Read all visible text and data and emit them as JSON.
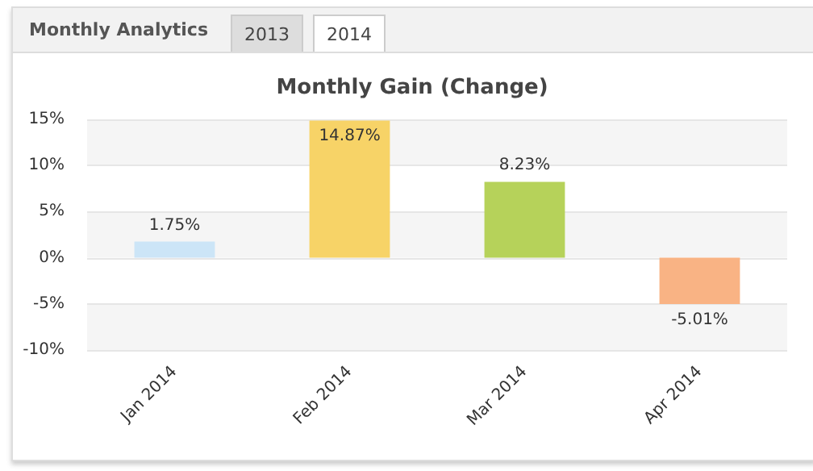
{
  "chart_data": {
    "type": "bar",
    "title": "Monthly Gain (Change)",
    "annotations": [
      "Monthly Analytics",
      "2013",
      "2014"
    ],
    "categories": [
      "Jan 2014",
      "Feb 2014",
      "Mar 2014",
      "Apr 2014"
    ],
    "values": [
      1.75,
      14.87,
      8.23,
      -5.01
    ],
    "colors": [
      "#cce5f7",
      "#f7d367",
      "#b6d25a",
      "#f9b384"
    ],
    "value_labels": [
      "1.75%",
      "14.87%",
      "8.23%",
      "-5.01%"
    ],
    "ylim": [
      -10,
      15
    ],
    "yticks": [
      {
        "value": -10,
        "label": "-10%"
      },
      {
        "value": -5,
        "label": "-5%"
      },
      {
        "value": 0,
        "label": "0%"
      },
      {
        "value": 5,
        "label": "5%"
      },
      {
        "value": 10,
        "label": "10%"
      },
      {
        "value": 15,
        "label": "15%"
      }
    ],
    "grid": "y"
  }
}
